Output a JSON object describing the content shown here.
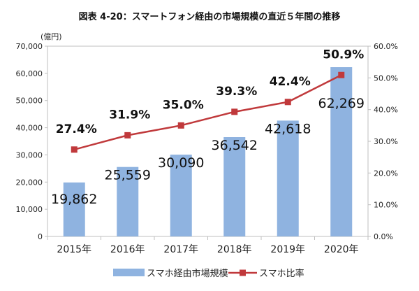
{
  "chart_data": {
    "type": "bar",
    "title": "図表 4-20：スマートフォン経由の市場規模の直近５年間の推移",
    "unit_label": "(億円)",
    "categories": [
      "2015年",
      "2016年",
      "2017年",
      "2018年",
      "2019年",
      "2020年"
    ],
    "series": [
      {
        "name": "スマホ経由市場規模",
        "type": "bar",
        "axis": "left",
        "color": "#8fb3e0",
        "values": [
          19862,
          25559,
          30090,
          36542,
          42618,
          62269
        ],
        "labels": [
          "19,862",
          "25,559",
          "30,090",
          "36,542",
          "42,618",
          "62,269"
        ]
      },
      {
        "name": "スマホ比率",
        "type": "line",
        "axis": "right",
        "color": "#c0393b",
        "values": [
          27.4,
          31.9,
          35.0,
          39.3,
          42.4,
          50.9
        ],
        "labels": [
          "27.4%",
          "31.9%",
          "35.0%",
          "39.3%",
          "42.4%",
          "50.9%"
        ]
      }
    ],
    "left_axis": {
      "min": 0,
      "max": 70000,
      "ticks": [
        0,
        10000,
        20000,
        30000,
        40000,
        50000,
        60000,
        70000
      ],
      "tick_labels": [
        "0",
        "10,000",
        "20,000",
        "30,000",
        "40,000",
        "50,000",
        "60,000",
        "70,000"
      ]
    },
    "right_axis": {
      "min": 0,
      "max": 60,
      "ticks": [
        0,
        10,
        20,
        30,
        40,
        50,
        60
      ],
      "tick_labels": [
        "0.0%",
        "10.0%",
        "20.0%",
        "30.0%",
        "40.0%",
        "50.0%",
        "60.0%"
      ]
    },
    "grid": false,
    "legend": "bottom"
  }
}
